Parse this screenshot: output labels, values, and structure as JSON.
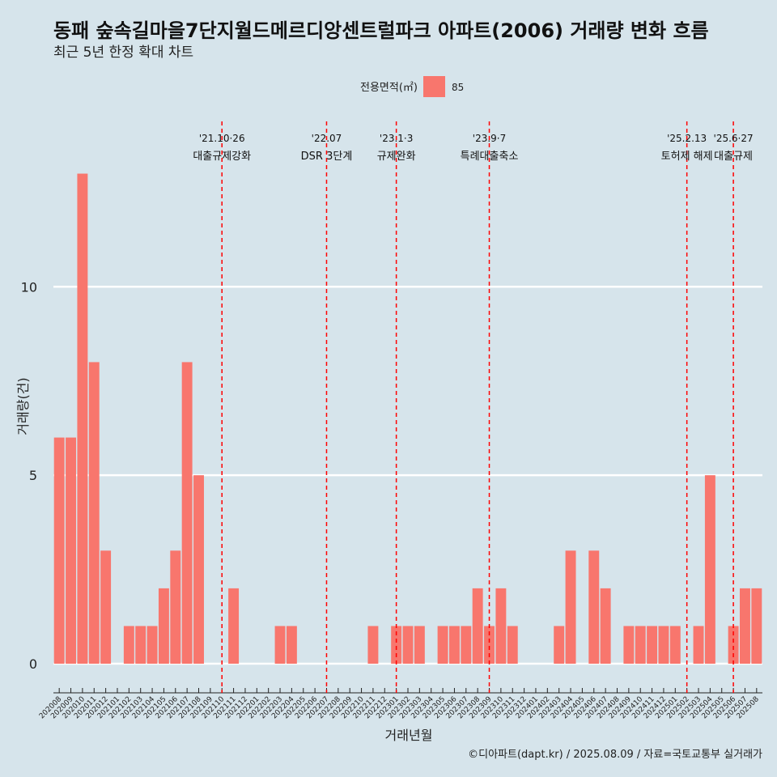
{
  "title": "동패 숲속길마을7단지월드메르디앙센트럴파크 아파트(2006) 거래량 변화 흐름",
  "subtitle": "최근 5년 한정 확대 차트",
  "caption": "©디아파트(dapt.kr) / 2025.08.09 / 자료=국토교통부 실거래가",
  "colors": {
    "bar": "#f8766d",
    "background": "#d6e4eb",
    "grid": "#ffffff",
    "event_line": "#ff0000"
  },
  "chart_data": {
    "type": "bar",
    "xlabel": "거래년월",
    "ylabel": "거래량(건)",
    "ylim": [
      -0.6,
      14.6
    ],
    "yticks": [
      0,
      5,
      10
    ],
    "legend": {
      "title": "전용면적(㎡)",
      "entries": [
        "85"
      ],
      "position": "top"
    },
    "grid": true,
    "categories": [
      "202008",
      "202009",
      "202010",
      "202011",
      "202012",
      "202101",
      "202102",
      "202103",
      "202104",
      "202105",
      "202106",
      "202107",
      "202108",
      "202109",
      "202110",
      "202111",
      "202112",
      "202201",
      "202202",
      "202203",
      "202204",
      "202205",
      "202206",
      "202207",
      "202208",
      "202209",
      "202210",
      "202211",
      "202212",
      "202301",
      "202302",
      "202303",
      "202304",
      "202305",
      "202306",
      "202307",
      "202308",
      "202309",
      "202310",
      "202311",
      "202312",
      "202401",
      "202402",
      "202403",
      "202404",
      "202405",
      "202406",
      "202407",
      "202408",
      "202409",
      "202410",
      "202411",
      "202412",
      "202501",
      "202502",
      "202503",
      "202504",
      "202505",
      "202506",
      "202507",
      "202508"
    ],
    "series": [
      {
        "name": "85",
        "values": [
          6,
          6,
          13,
          8,
          3,
          0,
          1,
          1,
          1,
          2,
          3,
          8,
          5,
          0,
          0,
          2,
          0,
          0,
          0,
          1,
          1,
          0,
          0,
          0,
          0,
          0,
          0,
          1,
          0,
          1,
          1,
          1,
          0,
          1,
          1,
          1,
          2,
          1,
          2,
          1,
          0,
          0,
          0,
          1,
          3,
          0,
          3,
          2,
          0,
          1,
          1,
          1,
          1,
          1,
          0,
          1,
          5,
          0,
          1,
          2,
          2
        ]
      }
    ],
    "events": [
      {
        "date": "'21.10·26",
        "label": "대출규제강화",
        "x": "202110"
      },
      {
        "date": "'22.07",
        "label": "DSR 3단계",
        "x": "202207"
      },
      {
        "date": "'23.1·3",
        "label": "규제완화",
        "x": "202301"
      },
      {
        "date": "'23.9·7",
        "label": "특례대출축소",
        "x": "202309"
      },
      {
        "date": "'25.2.13",
        "label": "토허제 해제",
        "x": "202502"
      },
      {
        "date": "'25.6·27",
        "label": "대출규제",
        "x": "202506"
      }
    ]
  }
}
